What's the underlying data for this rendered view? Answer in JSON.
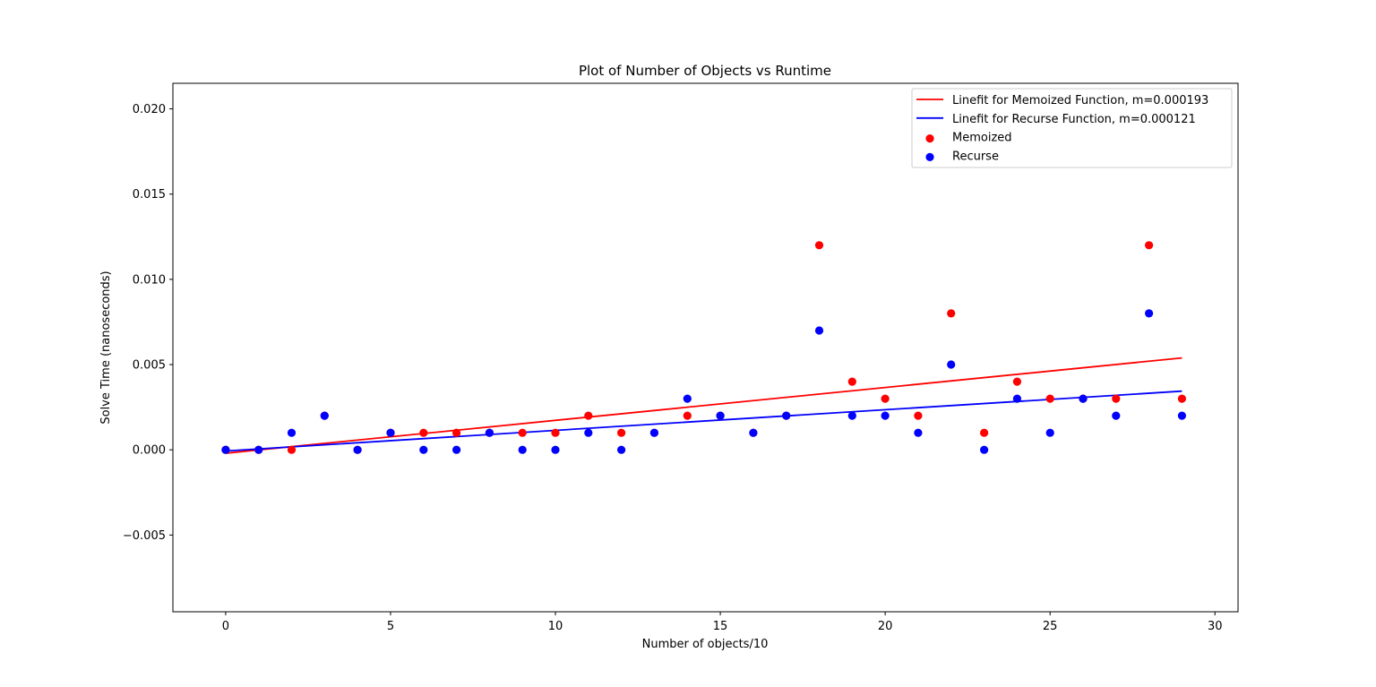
{
  "chart_data": {
    "type": "scatter",
    "title": "Plot of Number of Objects vs Runtime",
    "xlabel": "Number of objects/10",
    "ylabel": "Solve Time (nanoseconds)",
    "xlim": [
      -1.6,
      30.7
    ],
    "ylim": [
      -0.0095,
      0.0215
    ],
    "xticks": [
      0,
      5,
      10,
      15,
      20,
      25,
      30
    ],
    "xtick_labels": [
      "0",
      "5",
      "10",
      "15",
      "20",
      "25",
      "30"
    ],
    "yticks": [
      -0.005,
      0.0,
      0.005,
      0.01,
      0.015,
      0.02
    ],
    "ytick_labels": [
      "−0.005",
      "0.000",
      "0.005",
      "0.010",
      "0.015",
      "0.020"
    ],
    "grid": false,
    "legend_position": "top-right",
    "series": [
      {
        "name": "Memoized",
        "kind": "scatter",
        "color": "#ff0000",
        "x": [
          0,
          1,
          2,
          3,
          4,
          5,
          6,
          7,
          8,
          9,
          10,
          11,
          12,
          13,
          14,
          15,
          16,
          17,
          18,
          19,
          20,
          21,
          22,
          23,
          24,
          25,
          26,
          27,
          28,
          29
        ],
        "y": [
          0,
          0,
          0,
          0.002,
          0,
          0.001,
          0.001,
          0.001,
          0.001,
          0.001,
          0.001,
          0.002,
          0.001,
          0.001,
          0.002,
          0.002,
          0.001,
          0.002,
          0.012,
          0.004,
          0.003,
          0.002,
          0.008,
          0.001,
          0.004,
          0.003,
          0.003,
          0.003,
          0.012,
          0.003
        ]
      },
      {
        "name": "Recurse",
        "kind": "scatter",
        "color": "#0000ff",
        "x": [
          0,
          1,
          2,
          3,
          4,
          5,
          6,
          7,
          8,
          9,
          10,
          11,
          12,
          13,
          14,
          15,
          16,
          17,
          18,
          19,
          20,
          21,
          22,
          23,
          24,
          25,
          26,
          27,
          28,
          29
        ],
        "y": [
          0,
          0,
          0.001,
          0.002,
          0,
          0.001,
          0,
          0,
          0.001,
          0,
          0,
          0.001,
          0,
          0.001,
          0.003,
          0.002,
          0.001,
          0.002,
          0.007,
          0.002,
          0.002,
          0.001,
          0.005,
          0,
          0.003,
          0.001,
          0.003,
          0.002,
          0.008,
          0.002
        ]
      },
      {
        "name": "Linefit for Memoized Function, m=0.000193",
        "kind": "line",
        "color": "#ff0000",
        "x": [
          0,
          29
        ],
        "y": [
          -0.0002,
          0.00539
        ]
      },
      {
        "name": "Linefit for Recurse Function, m=0.000121",
        "kind": "line",
        "color": "#0000ff",
        "x": [
          0,
          29
        ],
        "y": [
          -7e-05,
          0.00344
        ]
      }
    ],
    "legend": [
      {
        "label": "Linefit for Memoized Function, m=0.000193",
        "kind": "line",
        "color": "#ff0000"
      },
      {
        "label": "Linefit for Recurse Function, m=0.000121",
        "kind": "line",
        "color": "#0000ff"
      },
      {
        "label": "Memoized",
        "kind": "scatter",
        "color": "#ff0000"
      },
      {
        "label": "Recurse",
        "kind": "scatter",
        "color": "#0000ff"
      }
    ]
  }
}
